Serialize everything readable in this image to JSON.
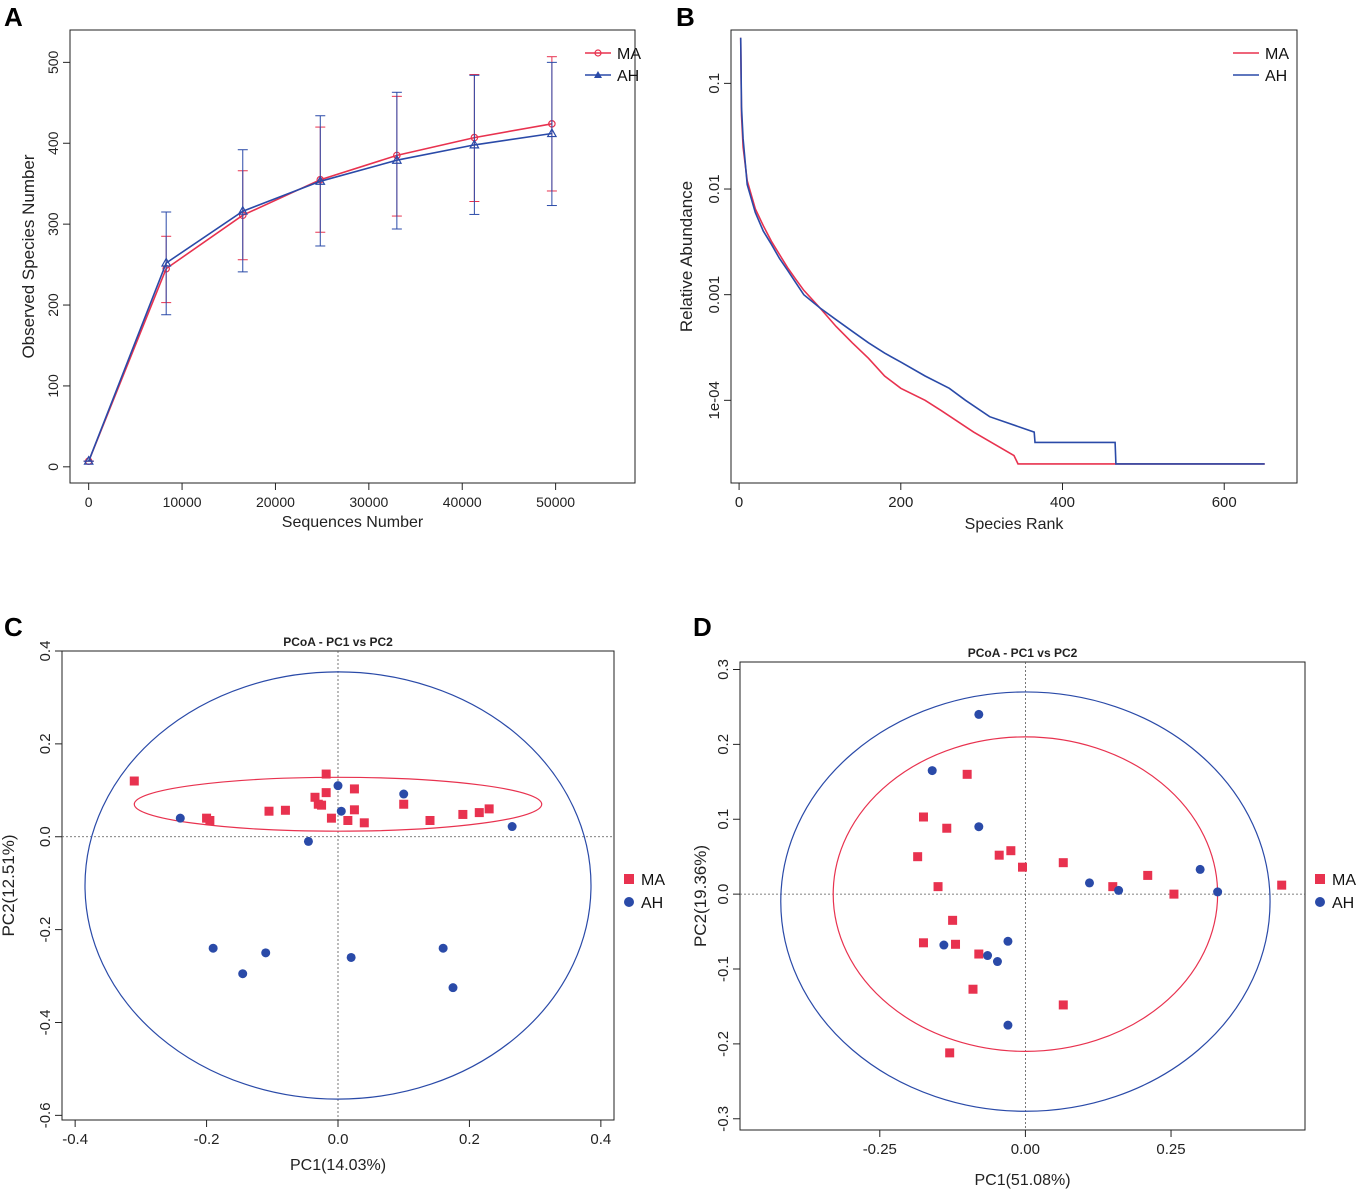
{
  "colors": {
    "ma": "#e8324f",
    "ah": "#2a4aa8"
  },
  "chart_data": [
    {
      "panel": "A",
      "type": "line",
      "xlabel": "Sequences Number",
      "ylabel": "Observed Species Number",
      "xticks": [
        0,
        10000,
        20000,
        30000,
        40000,
        50000
      ],
      "yticks": [
        0,
        100,
        200,
        300,
        400,
        500
      ],
      "xlim": [
        -2000,
        58500
      ],
      "ylim": [
        -20,
        540
      ],
      "legend": [
        "MA",
        "AH"
      ],
      "legend_position": "top-right",
      "x": [
        0,
        8300,
        16500,
        24800,
        33000,
        41300,
        49600
      ],
      "series": [
        {
          "name": "MA",
          "values": [
            7,
            245,
            311,
            355,
            385,
            407,
            424
          ],
          "err_low": [
            7,
            203,
            256,
            290,
            310,
            328,
            341
          ],
          "err_high": [
            7,
            285,
            366,
            420,
            458,
            485,
            507
          ]
        },
        {
          "name": "AH",
          "values": [
            7,
            252,
            316,
            353,
            379,
            398,
            412
          ],
          "err_low": [
            7,
            188,
            241,
            273,
            294,
            312,
            323
          ],
          "err_high": [
            7,
            315,
            392,
            434,
            463,
            484,
            500
          ]
        }
      ]
    },
    {
      "panel": "B",
      "type": "line",
      "xlabel": "Species Rank",
      "ylabel": "Relative Abundance",
      "xticks": [
        0,
        200,
        400,
        600
      ],
      "ytick_labels": [
        "1e-04",
        "0.001",
        "0.01",
        "0.1"
      ],
      "yticks": [
        0.0001,
        0.001,
        0.01,
        0.1
      ],
      "ylog": true,
      "xlim": [
        -10,
        690
      ],
      "ylim": [
        1.65e-05,
        0.32
      ],
      "legend": [
        "MA",
        "AH"
      ],
      "legend_position": "top-right",
      "series": [
        {
          "name": "MA",
          "points": [
            [
              2,
              0.27
            ],
            [
              3,
              0.05
            ],
            [
              5,
              0.025
            ],
            [
              10,
              0.012
            ],
            [
              20,
              0.0065
            ],
            [
              30,
              0.0045
            ],
            [
              40,
              0.0032
            ],
            [
              50,
              0.0024
            ],
            [
              60,
              0.0018
            ],
            [
              70,
              0.0014
            ],
            [
              80,
              0.0011
            ],
            [
              100,
              0.00075
            ],
            [
              120,
              0.0005
            ],
            [
              140,
              0.00035
            ],
            [
              160,
              0.00025
            ],
            [
              180,
              0.00017
            ],
            [
              200,
              0.00013
            ],
            [
              230,
              0.0001
            ],
            [
              250,
              8e-05
            ],
            [
              290,
              5e-05
            ],
            [
              340,
              3e-05
            ],
            [
              345,
              2.5e-05
            ],
            [
              460,
              2.5e-05
            ],
            [
              460,
              2.5e-05
            ],
            [
              650,
              2.5e-05
            ]
          ]
        },
        {
          "name": "AH",
          "points": [
            [
              2,
              0.27
            ],
            [
              3,
              0.06
            ],
            [
              5,
              0.03
            ],
            [
              10,
              0.011
            ],
            [
              20,
              0.006
            ],
            [
              30,
              0.004
            ],
            [
              40,
              0.003
            ],
            [
              50,
              0.0022
            ],
            [
              60,
              0.0017
            ],
            [
              70,
              0.0013
            ],
            [
              80,
              0.001
            ],
            [
              100,
              0.00075
            ],
            [
              120,
              0.00058
            ],
            [
              140,
              0.00045
            ],
            [
              160,
              0.00035
            ],
            [
              180,
              0.00028
            ],
            [
              200,
              0.00023
            ],
            [
              230,
              0.00017
            ],
            [
              260,
              0.00013
            ],
            [
              280,
              0.0001
            ],
            [
              310,
              7e-05
            ],
            [
              365,
              5e-05
            ],
            [
              366,
              4e-05
            ],
            [
              465,
              4e-05
            ],
            [
              466,
              2.5e-05
            ],
            [
              650,
              2.5e-05
            ]
          ]
        }
      ]
    },
    {
      "panel": "C",
      "type": "scatter",
      "title": "PCoA - PC1 vs PC2",
      "xlabel": "PC1(14.03%)",
      "ylabel": "PC2(12.51%)",
      "xticks": [
        -0.4,
        -0.2,
        0.0,
        0.2,
        0.4
      ],
      "yticks": [
        -0.6,
        -0.4,
        -0.2,
        0.0,
        0.2,
        0.4
      ],
      "xtick_labels": [
        "-0.4",
        "-0.2",
        "0.0",
        "0.2",
        "0.4"
      ],
      "ytick_labels": [
        "-0.6",
        "-0.4",
        "-0.2",
        "0.0",
        "0.2",
        "0.4"
      ],
      "xlim": [
        -0.42,
        0.42
      ],
      "ylim": [
        -0.61,
        0.4
      ],
      "legend": [
        "MA",
        "AH"
      ],
      "legend_position": "right",
      "series": [
        {
          "name": "MA",
          "marker": "square",
          "points": [
            [
              -0.31,
              0.12
            ],
            [
              -0.2,
              0.04
            ],
            [
              -0.195,
              0.035
            ],
            [
              -0.105,
              0.055
            ],
            [
              -0.08,
              0.057
            ],
            [
              -0.035,
              0.085
            ],
            [
              -0.03,
              0.07
            ],
            [
              -0.025,
              0.068
            ],
            [
              -0.018,
              0.135
            ],
            [
              -0.018,
              0.095
            ],
            [
              -0.01,
              0.04
            ],
            [
              0.015,
              0.035
            ],
            [
              0.025,
              0.103
            ],
            [
              0.025,
              0.058
            ],
            [
              0.04,
              0.03
            ],
            [
              0.1,
              0.07
            ],
            [
              0.14,
              0.035
            ],
            [
              0.19,
              0.048
            ],
            [
              0.215,
              0.052
            ],
            [
              0.23,
              0.06
            ]
          ]
        },
        {
          "name": "AH",
          "marker": "circle",
          "points": [
            [
              -0.24,
              0.04
            ],
            [
              -0.045,
              -0.01
            ],
            [
              0.0,
              0.11
            ],
            [
              0.005,
              0.055
            ],
            [
              0.1,
              0.092
            ],
            [
              0.265,
              0.022
            ],
            [
              -0.19,
              -0.24
            ],
            [
              -0.145,
              -0.295
            ],
            [
              -0.11,
              -0.25
            ],
            [
              0.02,
              -0.26
            ],
            [
              0.16,
              -0.24
            ],
            [
              0.175,
              -0.325
            ]
          ]
        }
      ],
      "ellipses": [
        {
          "name": "MA",
          "cx": 0.0,
          "cy": 0.07,
          "rx": 0.31,
          "ry": 0.058
        },
        {
          "name": "AH",
          "cx": 0.0,
          "cy": -0.105,
          "rx": 0.385,
          "ry": 0.46
        }
      ]
    },
    {
      "panel": "D",
      "type": "scatter",
      "title": "PCoA - PC1 vs PC2",
      "xlabel": "PC1(51.08%)",
      "ylabel": "PC2(19.36%)",
      "xticks": [
        -0.25,
        0.0,
        0.25
      ],
      "yticks": [
        -0.3,
        -0.2,
        -0.1,
        0.0,
        0.1,
        0.2,
        0.3
      ],
      "xtick_labels": [
        "-0.25",
        "0.00",
        "0.25"
      ],
      "ytick_labels": [
        "-0.3",
        "-0.2",
        "-0.1",
        "0.0",
        "0.1",
        "0.2",
        "0.3"
      ],
      "xlim": [
        -0.49,
        0.48
      ],
      "ylim": [
        -0.315,
        0.31
      ],
      "legend": [
        "MA",
        "AH"
      ],
      "legend_position": "right",
      "series": [
        {
          "name": "MA",
          "marker": "square",
          "points": [
            [
              -0.1,
              0.16
            ],
            [
              -0.175,
              0.103
            ],
            [
              -0.135,
              0.088
            ],
            [
              -0.185,
              0.05
            ],
            [
              -0.045,
              0.052
            ],
            [
              -0.025,
              0.058
            ],
            [
              -0.005,
              0.036
            ],
            [
              0.065,
              0.042
            ],
            [
              -0.15,
              0.01
            ],
            [
              0.15,
              0.01
            ],
            [
              0.21,
              0.025
            ],
            [
              0.255,
              0.0
            ],
            [
              0.44,
              0.012
            ],
            [
              -0.125,
              -0.035
            ],
            [
              -0.175,
              -0.065
            ],
            [
              -0.12,
              -0.067
            ],
            [
              -0.08,
              -0.08
            ],
            [
              -0.09,
              -0.127
            ],
            [
              0.065,
              -0.148
            ],
            [
              -0.13,
              -0.212
            ]
          ]
        },
        {
          "name": "AH",
          "marker": "circle",
          "points": [
            [
              -0.08,
              0.24
            ],
            [
              -0.16,
              0.165
            ],
            [
              -0.08,
              0.09
            ],
            [
              0.11,
              0.015
            ],
            [
              0.16,
              0.005
            ],
            [
              0.3,
              0.033
            ],
            [
              0.33,
              0.003
            ],
            [
              -0.14,
              -0.068
            ],
            [
              -0.065,
              -0.082
            ],
            [
              -0.048,
              -0.09
            ],
            [
              -0.03,
              -0.063
            ],
            [
              -0.03,
              -0.175
            ]
          ]
        }
      ],
      "ellipses": [
        {
          "name": "MA",
          "cx": 0.0,
          "cy": 0.0,
          "rx": 0.33,
          "ry": 0.21
        },
        {
          "name": "AH",
          "cx": 0.0,
          "cy": -0.01,
          "rx": 0.42,
          "ry": 0.28
        }
      ]
    }
  ]
}
